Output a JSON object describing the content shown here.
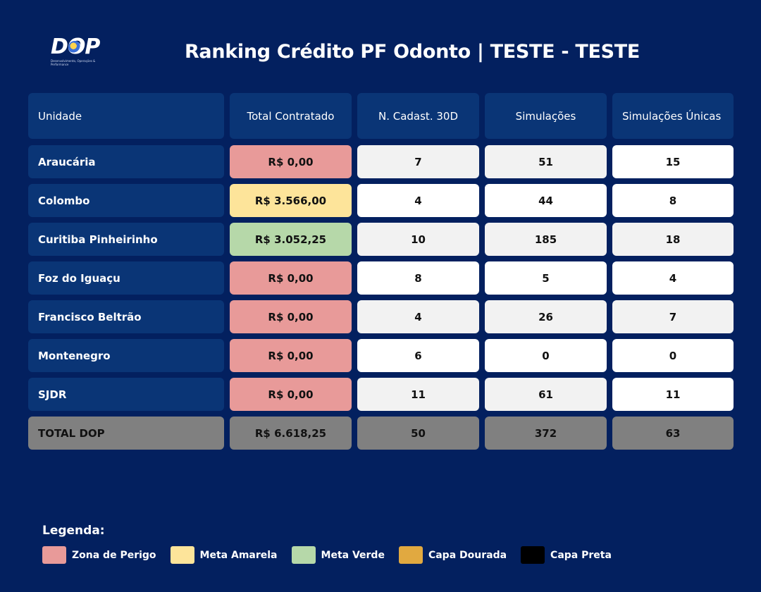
{
  "logo": {
    "text": "DOP",
    "subtitle": "Desenvolvimento, Operações & Performance"
  },
  "title": "Ranking Crédito PF Odonto | TESTE - TESTE",
  "table": {
    "headers": [
      "Unidade",
      "Total Contratado",
      "N. Cadast. 30D",
      "Simulações",
      "Simulações Únicas"
    ],
    "rows": [
      {
        "unit": "Araucária",
        "total": "R$ 0,00",
        "status": "zona-de-perigo",
        "cad": "7",
        "sim": "51",
        "uniq": "15"
      },
      {
        "unit": "Colombo",
        "total": "R$ 3.566,00",
        "status": "meta-amarela",
        "cad": "4",
        "sim": "44",
        "uniq": "8"
      },
      {
        "unit": "Curitiba Pinheirinho",
        "total": "R$ 3.052,25",
        "status": "meta-verde",
        "cad": "10",
        "sim": "185",
        "uniq": "18"
      },
      {
        "unit": "Foz do Iguaçu",
        "total": "R$ 0,00",
        "status": "zona-de-perigo",
        "cad": "8",
        "sim": "5",
        "uniq": "4"
      },
      {
        "unit": "Francisco Beltrão",
        "total": "R$ 0,00",
        "status": "zona-de-perigo",
        "cad": "4",
        "sim": "26",
        "uniq": "7"
      },
      {
        "unit": "Montenegro",
        "total": "R$ 0,00",
        "status": "zona-de-perigo",
        "cad": "6",
        "sim": "0",
        "uniq": "0"
      },
      {
        "unit": "SJDR",
        "total": "R$ 0,00",
        "status": "zona-de-perigo",
        "cad": "11",
        "sim": "61",
        "uniq": "11"
      }
    ],
    "total_row": {
      "unit": "TOTAL DOP",
      "total": "R$ 6.618,25",
      "cad": "50",
      "sim": "372",
      "uniq": "63"
    }
  },
  "legend": {
    "title": "Legenda:",
    "items": [
      {
        "label": "Zona de Perigo",
        "color": "#e89a99"
      },
      {
        "label": "Meta Amarela",
        "color": "#fde49a"
      },
      {
        "label": "Meta Verde",
        "color": "#b6d8a9"
      },
      {
        "label": "Capa Dourada",
        "color": "#e1a940"
      },
      {
        "label": "Capa Preta",
        "color": "#000000"
      }
    ]
  },
  "colors": {
    "background": "#03205f",
    "header_cell": "#0a3576",
    "total_row": "#808080"
  }
}
